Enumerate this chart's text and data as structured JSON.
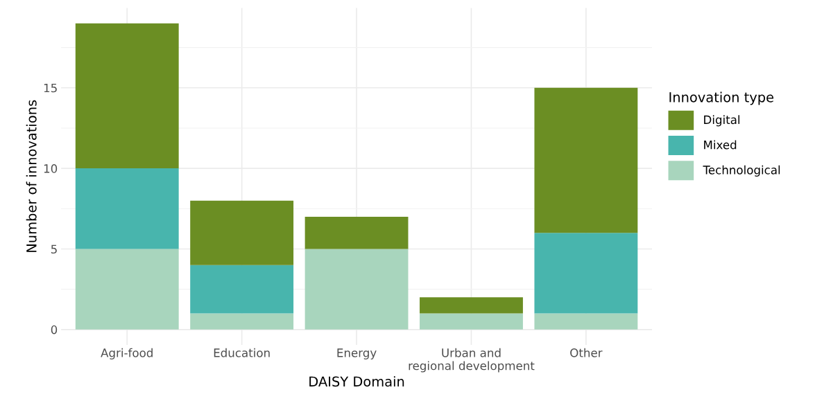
{
  "chart_data": {
    "type": "bar",
    "stacked": true,
    "xlabel": "DAISY Domain",
    "ylabel": "Number of innovations",
    "legend_title": "Innovation type",
    "categories": [
      "Agri-food",
      "Education",
      "Energy",
      "Urban and\nregional development",
      "Other"
    ],
    "series": [
      {
        "name": "Technological",
        "color": "#a8d5bd",
        "values": [
          5,
          1,
          5,
          1,
          1
        ]
      },
      {
        "name": "Mixed",
        "color": "#48b5ad",
        "values": [
          5,
          3,
          0,
          0,
          5
        ]
      },
      {
        "name": "Digital",
        "color": "#6b8e23",
        "values": [
          9,
          4,
          2,
          1,
          9
        ]
      }
    ],
    "ylim": [
      -0.95,
      19.95
    ],
    "yticks": [
      0,
      5,
      10,
      15
    ],
    "grid": true,
    "legend": "right"
  }
}
